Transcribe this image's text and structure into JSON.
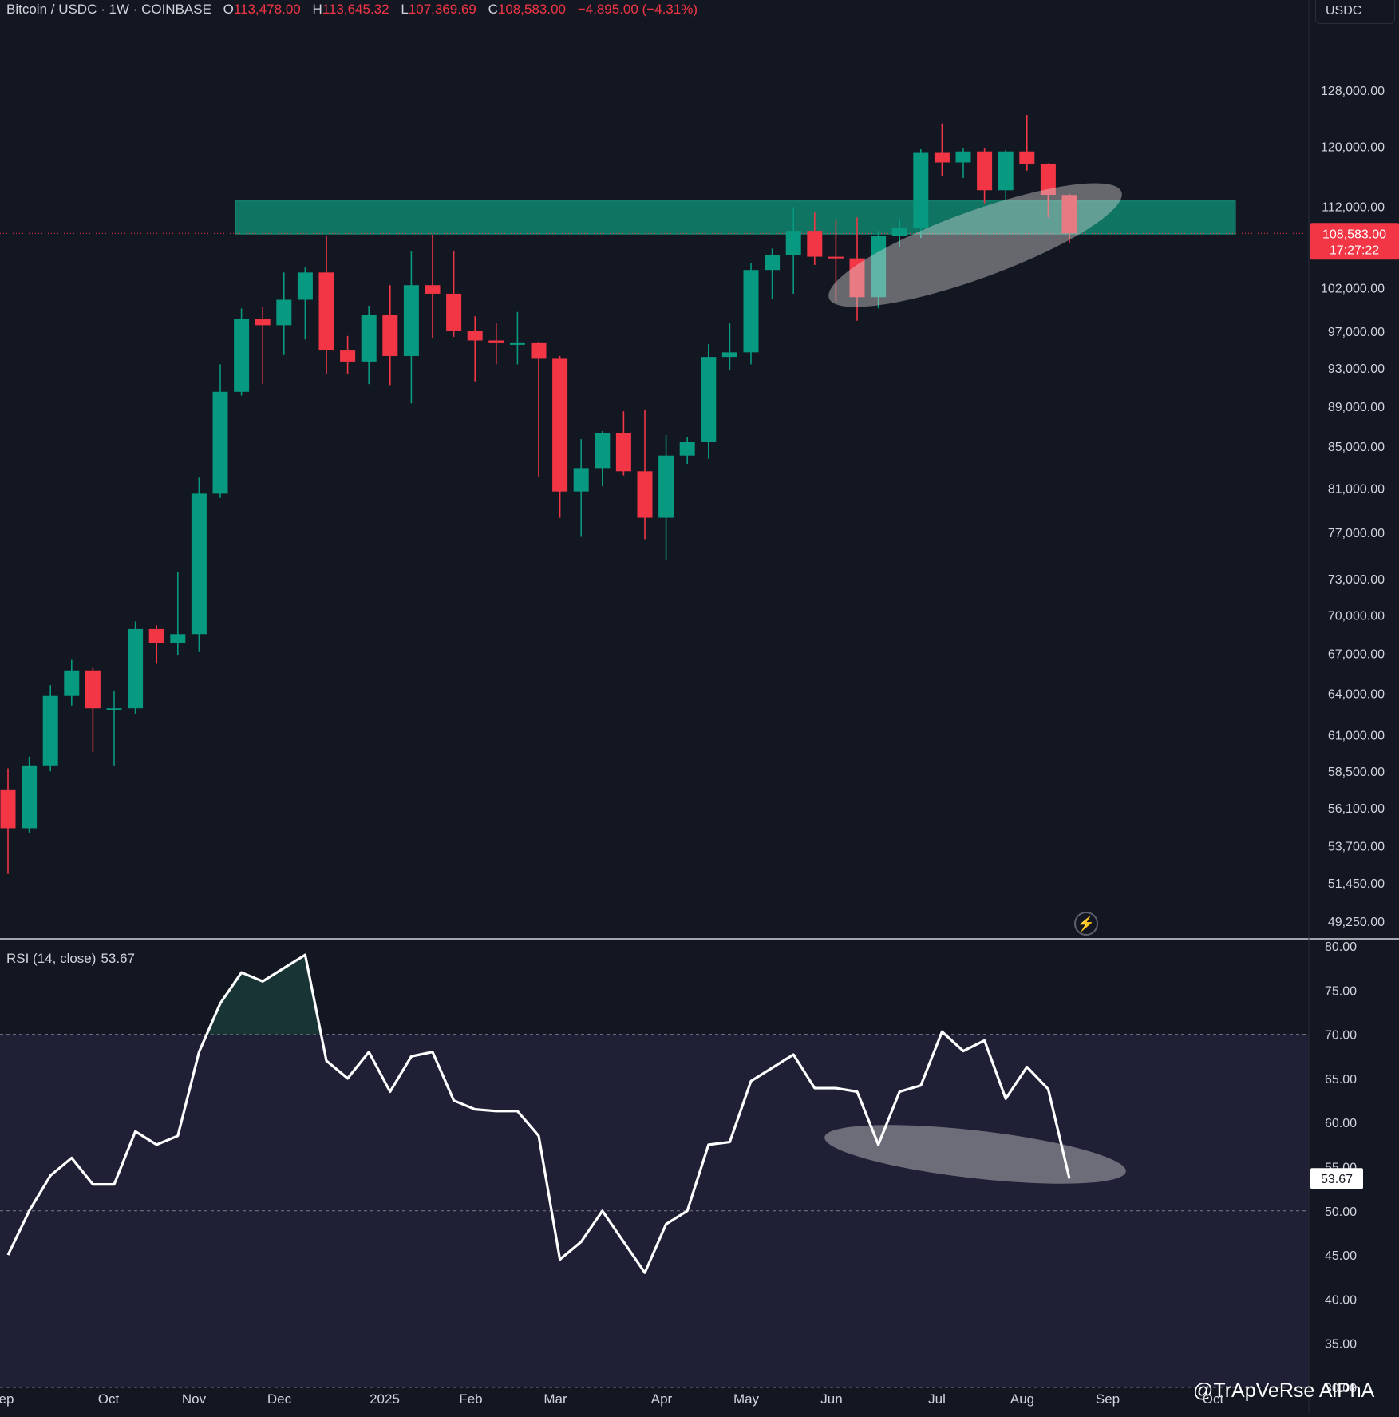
{
  "header": {
    "symbol": "Bitcoin / USDC · 1W · COINBASE",
    "open_label": "O",
    "open": "113,478.00",
    "high_label": "H",
    "high": "113,645.32",
    "low_label": "L",
    "low": "107,369.69",
    "close_label": "C",
    "close": "108,583.00",
    "change": "−4,895.00 (−4.31%)",
    "currency": "USDC"
  },
  "price_tag": {
    "price": "108,583.00",
    "countdown": "17:27:22"
  },
  "rsi": {
    "legend": "RSI (14, close)",
    "value": "53.67"
  },
  "watermark": "@TrApVeRse AlPhA",
  "colors": {
    "up": "#089981",
    "down": "#f23645",
    "background": "#131722",
    "zone": "#0f7a66",
    "rsi_band": "#1f1f36"
  },
  "chart_data": [
    {
      "type": "candlestick",
      "title": "Bitcoin / USDC · 1W · COINBASE",
      "scale": "log",
      "ylim": [
        48300,
        137500
      ],
      "y_ticks": [
        "128,000.00",
        "120,000.00",
        "112,000.00",
        "102,000.00",
        "97,000.00",
        "93,000.00",
        "89,000.00",
        "85,000.00",
        "81,000.00",
        "77,000.00",
        "73,000.00",
        "70,000.00",
        "67,000.00",
        "64,000.00",
        "61,000.00",
        "58,500.00",
        "56,100.00",
        "53,700.00",
        "51,450.00",
        "49,250.00"
      ],
      "x_ticks": [
        "ep",
        "Oct",
        "Nov",
        "Dec",
        "2025",
        "Feb",
        "Mar",
        "Apr",
        "May",
        "Jun",
        "Jul",
        "Aug",
        "Sep",
        "Oct"
      ],
      "candles": [
        {
          "o": 57300,
          "h": 58700,
          "l": 52000,
          "c": 54800
        },
        {
          "o": 54800,
          "h": 59500,
          "l": 54500,
          "c": 58900
        },
        {
          "o": 58900,
          "h": 64600,
          "l": 58500,
          "c": 63800
        },
        {
          "o": 63800,
          "h": 66500,
          "l": 63100,
          "c": 65700
        },
        {
          "o": 65700,
          "h": 65900,
          "l": 59800,
          "c": 62900
        },
        {
          "o": 62900,
          "h": 64200,
          "l": 58900,
          "c": 62900
        },
        {
          "o": 62900,
          "h": 69500,
          "l": 62500,
          "c": 68900
        },
        {
          "o": 68900,
          "h": 69200,
          "l": 66200,
          "c": 67800
        },
        {
          "o": 67800,
          "h": 73600,
          "l": 66900,
          "c": 68500
        },
        {
          "o": 68500,
          "h": 82000,
          "l": 67100,
          "c": 80500
        },
        {
          "o": 80500,
          "h": 93400,
          "l": 80100,
          "c": 90500
        },
        {
          "o": 90500,
          "h": 99600,
          "l": 90100,
          "c": 98400
        },
        {
          "o": 98400,
          "h": 99800,
          "l": 91300,
          "c": 97700
        },
        {
          "o": 97700,
          "h": 103800,
          "l": 94400,
          "c": 100600
        },
        {
          "o": 100600,
          "h": 104500,
          "l": 96100,
          "c": 103800
        },
        {
          "o": 103800,
          "h": 108300,
          "l": 92400,
          "c": 94900
        },
        {
          "o": 94900,
          "h": 96500,
          "l": 92400,
          "c": 93700
        },
        {
          "o": 93700,
          "h": 99900,
          "l": 91300,
          "c": 98900
        },
        {
          "o": 98900,
          "h": 102300,
          "l": 91200,
          "c": 94300
        },
        {
          "o": 94300,
          "h": 106400,
          "l": 89300,
          "c": 102300
        },
        {
          "o": 102300,
          "h": 108400,
          "l": 96300,
          "c": 101300
        },
        {
          "o": 101300,
          "h": 106400,
          "l": 96400,
          "c": 97100
        },
        {
          "o": 97100,
          "h": 98700,
          "l": 91600,
          "c": 96000
        },
        {
          "o": 96000,
          "h": 97900,
          "l": 93400,
          "c": 95700
        },
        {
          "o": 95700,
          "h": 99200,
          "l": 93400,
          "c": 95700
        },
        {
          "o": 95700,
          "h": 95800,
          "l": 82100,
          "c": 94000
        },
        {
          "o": 94000,
          "h": 94300,
          "l": 78300,
          "c": 80700
        },
        {
          "o": 80700,
          "h": 85700,
          "l": 76600,
          "c": 82900
        },
        {
          "o": 82900,
          "h": 86500,
          "l": 81200,
          "c": 86300
        },
        {
          "o": 86300,
          "h": 88500,
          "l": 82200,
          "c": 82600
        },
        {
          "o": 82600,
          "h": 88600,
          "l": 76400,
          "c": 78300
        },
        {
          "o": 78300,
          "h": 86100,
          "l": 74600,
          "c": 84100
        },
        {
          "o": 84100,
          "h": 85900,
          "l": 83300,
          "c": 85400
        },
        {
          "o": 85400,
          "h": 95600,
          "l": 83800,
          "c": 94200
        },
        {
          "o": 94200,
          "h": 97900,
          "l": 92800,
          "c": 94700
        },
        {
          "o": 94700,
          "h": 104900,
          "l": 93400,
          "c": 104100
        },
        {
          "o": 104100,
          "h": 106700,
          "l": 100700,
          "c": 105900
        },
        {
          "o": 105900,
          "h": 111900,
          "l": 101300,
          "c": 108900
        },
        {
          "o": 108900,
          "h": 111200,
          "l": 104700,
          "c": 105700
        },
        {
          "o": 105700,
          "h": 110300,
          "l": 100400,
          "c": 105500
        },
        {
          "o": 105500,
          "h": 110600,
          "l": 98200,
          "c": 100900
        },
        {
          "o": 100900,
          "h": 108900,
          "l": 99600,
          "c": 108300
        },
        {
          "o": 108300,
          "h": 110400,
          "l": 106900,
          "c": 109200
        },
        {
          "o": 109200,
          "h": 119600,
          "l": 108000,
          "c": 119100
        },
        {
          "o": 119100,
          "h": 123200,
          "l": 116000,
          "c": 117800
        },
        {
          "o": 117800,
          "h": 119700,
          "l": 115700,
          "c": 119300
        },
        {
          "o": 119300,
          "h": 119700,
          "l": 112400,
          "c": 114100
        },
        {
          "o": 114100,
          "h": 119500,
          "l": 112800,
          "c": 119300
        },
        {
          "o": 119300,
          "h": 124400,
          "l": 116700,
          "c": 117600
        },
        {
          "o": 117600,
          "h": 117700,
          "l": 110600,
          "c": 113500
        },
        {
          "o": 113478,
          "h": 113645,
          "l": 107370,
          "c": 108583
        }
      ],
      "resistance_zone": [
        108500,
        112700
      ],
      "last_price_line": 108583
    },
    {
      "type": "line",
      "title": "RSI (14, close)",
      "ylim": [
        30,
        80
      ],
      "y_ticks": [
        "80.00",
        "75.00",
        "70.00",
        "65.00",
        "60.00",
        "55.00",
        "50.00",
        "45.00",
        "40.00",
        "35.00",
        "30.00"
      ],
      "levels": [
        70,
        50,
        30
      ],
      "values": [
        45,
        50,
        54,
        56,
        53,
        53,
        59,
        57.5,
        58.5,
        68,
        73.5,
        77,
        76,
        77.5,
        79,
        67,
        65,
        68,
        63.5,
        67.5,
        68,
        62.5,
        61.5,
        61.3,
        61.3,
        58.5,
        44.5,
        46.5,
        50,
        46.5,
        43,
        48.5,
        50,
        57.5,
        57.8,
        64.7,
        66.2,
        67.7,
        63.9,
        63.9,
        63.5,
        57.5,
        63.5,
        64.2,
        70.3,
        68.1,
        69.3,
        62.7,
        66.3,
        63.8,
        53.67
      ],
      "last_value": 53.67
    }
  ]
}
